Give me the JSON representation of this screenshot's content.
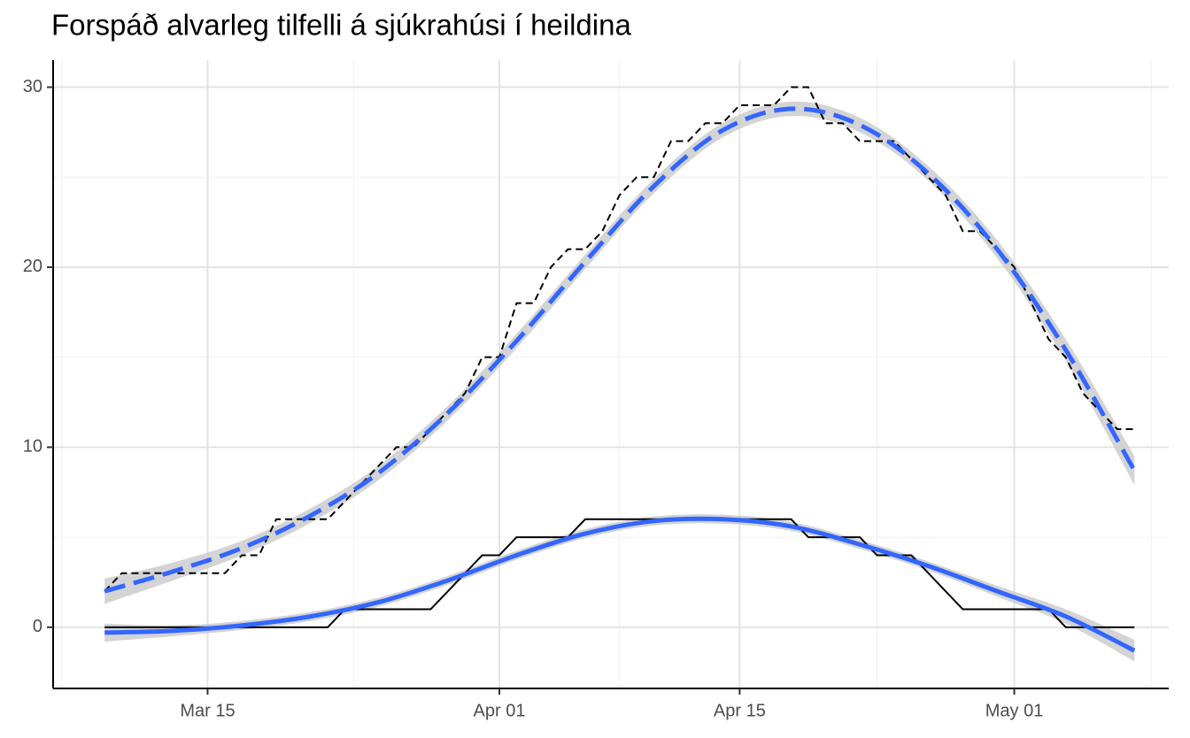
{
  "chart_data": {
    "type": "line",
    "title": "Forspáð alvarleg tilfelli á sjúkrahúsi í heildina",
    "x": [
      "Mar 09",
      "Mar 10",
      "Mar 11",
      "Mar 12",
      "Mar 13",
      "Mar 14",
      "Mar 15",
      "Mar 16",
      "Mar 17",
      "Mar 18",
      "Mar 19",
      "Mar 20",
      "Mar 21",
      "Mar 22",
      "Mar 23",
      "Mar 24",
      "Mar 25",
      "Mar 26",
      "Mar 27",
      "Mar 28",
      "Mar 29",
      "Mar 30",
      "Mar 31",
      "Apr 01",
      "Apr 02",
      "Apr 03",
      "Apr 04",
      "Apr 05",
      "Apr 06",
      "Apr 07",
      "Apr 08",
      "Apr 09",
      "Apr 10",
      "Apr 11",
      "Apr 12",
      "Apr 13",
      "Apr 14",
      "Apr 15",
      "Apr 16",
      "Apr 17",
      "Apr 18",
      "Apr 19",
      "Apr 20",
      "Apr 21",
      "Apr 22",
      "Apr 23",
      "Apr 24",
      "Apr 25",
      "Apr 26",
      "Apr 27",
      "Apr 28",
      "Apr 29",
      "Apr 30",
      "May 01",
      "May 02",
      "May 03",
      "May 04",
      "May 05",
      "May 06",
      "May 07",
      "May 08"
    ],
    "series": [
      {
        "color": "#000000",
        "linestyle": "dashed",
        "values": [
          2,
          3,
          3,
          3,
          3,
          3,
          3,
          3,
          4,
          4,
          6,
          6,
          6,
          6,
          7,
          8,
          9,
          10,
          10,
          11,
          12,
          13,
          15,
          15,
          18,
          18,
          20,
          21,
          21,
          22,
          24,
          25,
          25,
          27,
          27,
          28,
          28,
          29,
          29,
          29,
          30,
          30,
          28,
          28,
          27,
          27,
          27,
          26,
          25,
          24,
          22,
          22,
          21,
          20,
          18,
          16,
          15,
          13,
          12,
          11,
          11
        ]
      },
      {
        "color": "#000000",
        "linestyle": "solid",
        "values": [
          0,
          0,
          0,
          0,
          0,
          0,
          0,
          0,
          0,
          0,
          0,
          0,
          0,
          0,
          1,
          1,
          1,
          1,
          1,
          1,
          2,
          3,
          4,
          4,
          5,
          5,
          5,
          5,
          6,
          6,
          6,
          6,
          6,
          6,
          6,
          6,
          6,
          6,
          6,
          6,
          6,
          5,
          5,
          5,
          5,
          4,
          4,
          4,
          3,
          2,
          1,
          1,
          1,
          1,
          1,
          1,
          0,
          0,
          0,
          0,
          0
        ]
      },
      {
        "color": "#3366FF",
        "linestyle": "dashed",
        "band_color": "#cccccc",
        "x": [
          "Mar 09",
          "Mar 13",
          "Mar 17",
          "Mar 21",
          "Mar 25",
          "Mar 29",
          "Apr 02",
          "Apr 06",
          "Apr 10",
          "Apr 14",
          "Apr 18",
          "Apr 22",
          "Apr 26",
          "Apr 30",
          "May 04",
          "May 08"
        ],
        "values": [
          2.0,
          3.1,
          4.4,
          6.2,
          8.6,
          11.9,
          15.9,
          20.3,
          24.5,
          27.6,
          28.8,
          27.9,
          25.2,
          21.0,
          15.4,
          8.7
        ],
        "lower": [
          1.3,
          2.6,
          4.0,
          5.8,
          8.2,
          11.5,
          15.5,
          19.9,
          24.1,
          27.2,
          28.4,
          27.5,
          24.8,
          20.5,
          14.8,
          7.9
        ],
        "upper": [
          2.7,
          3.6,
          4.8,
          6.6,
          9.0,
          12.3,
          16.3,
          20.7,
          24.9,
          28.0,
          29.2,
          28.3,
          25.6,
          21.5,
          16.0,
          9.5
        ]
      },
      {
        "color": "#3366FF",
        "linestyle": "solid",
        "band_color": "#cccccc",
        "x": [
          "Mar 09",
          "Mar 13",
          "Mar 17",
          "Mar 21",
          "Mar 25",
          "Mar 29",
          "Apr 02",
          "Apr 06",
          "Apr 10",
          "Apr 14",
          "Apr 18",
          "Apr 22",
          "Apr 26",
          "Apr 30",
          "May 04",
          "May 08"
        ],
        "values": [
          -0.3,
          -0.2,
          0.1,
          0.6,
          1.4,
          2.6,
          4.0,
          5.2,
          5.9,
          6.0,
          5.6,
          4.6,
          3.4,
          2.0,
          0.6,
          -1.3
        ],
        "lower": [
          -0.8,
          -0.5,
          -0.15,
          0.35,
          1.15,
          2.35,
          3.75,
          4.95,
          5.65,
          5.75,
          5.35,
          4.35,
          3.15,
          1.7,
          0.2,
          -1.9
        ],
        "upper": [
          0.2,
          0.1,
          0.35,
          0.85,
          1.65,
          2.85,
          4.25,
          5.45,
          6.15,
          6.25,
          5.85,
          4.85,
          3.65,
          2.3,
          1.0,
          -0.7
        ]
      }
    ],
    "xlim": [
      "Mar 06",
      "May 10"
    ],
    "xticks": [
      "Mar 15",
      "Apr 01",
      "Apr 15",
      "May 01"
    ],
    "ylim": [
      -3.4,
      31.5
    ],
    "yticks": [
      0,
      10,
      20,
      30
    ],
    "grid": true
  }
}
